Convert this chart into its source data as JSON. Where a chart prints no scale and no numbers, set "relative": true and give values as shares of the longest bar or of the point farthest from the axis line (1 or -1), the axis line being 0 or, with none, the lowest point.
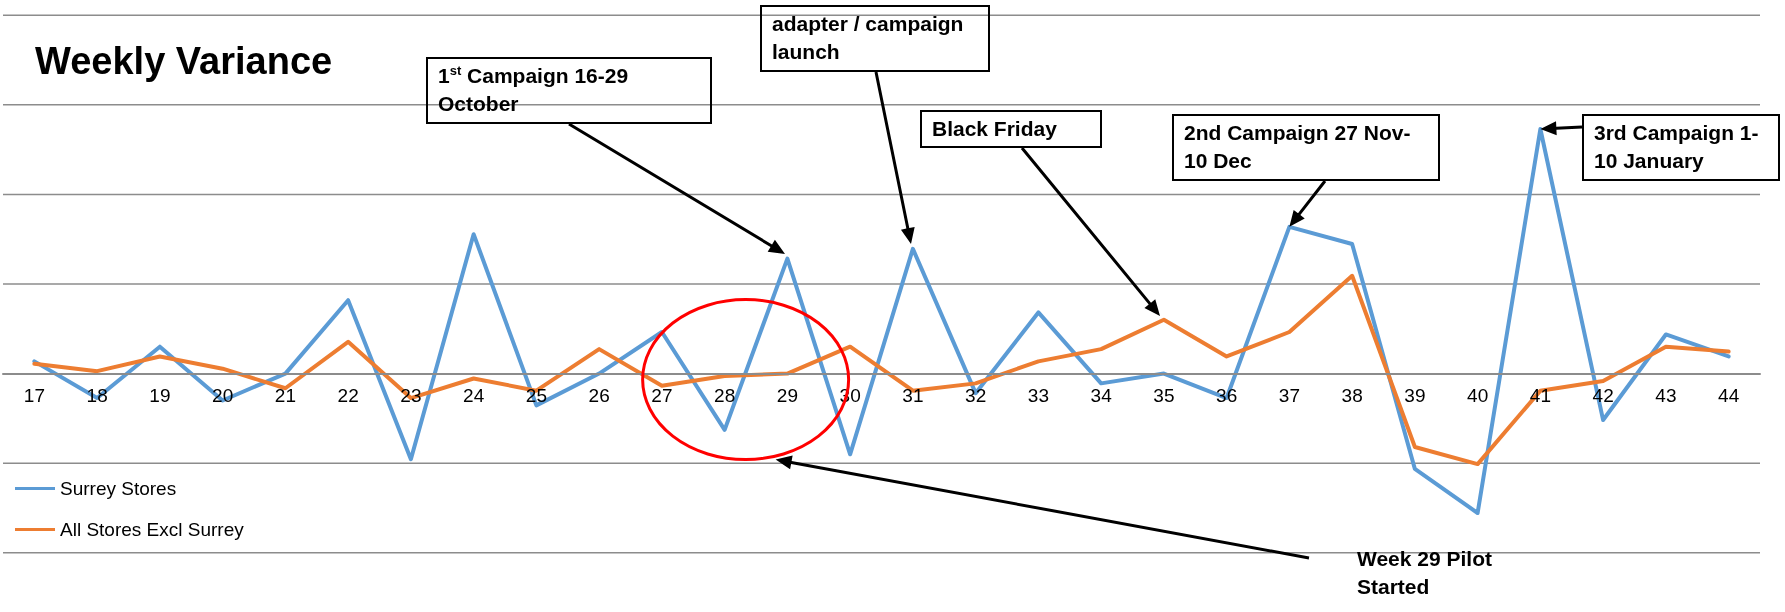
{
  "chart_data": {
    "type": "line",
    "title": "Weekly Variance",
    "categories": [
      "17",
      "18",
      "19",
      "20",
      "21",
      "22",
      "23",
      "24",
      "25",
      "26",
      "27",
      "28",
      "29",
      "30",
      "31",
      "32",
      "33",
      "34",
      "35",
      "36",
      "37",
      "38",
      "39",
      "40",
      "41",
      "42",
      "43",
      "44"
    ],
    "relative": true,
    "grid": "y",
    "legend": "bottom left",
    "marker": "none",
    "line_style": "solid",
    "series": [
      {
        "name": "Surrey Stores",
        "color": "#5b9bd5",
        "values": [
          0.05,
          -0.1,
          0.11,
          -0.11,
          0.0,
          0.3,
          -0.35,
          0.57,
          -0.13,
          0.0,
          0.17,
          -0.23,
          0.47,
          -0.33,
          0.51,
          -0.08,
          0.25,
          -0.04,
          0.0,
          -0.1,
          0.6,
          0.53,
          -0.39,
          -0.57,
          1.0,
          -0.19,
          0.16,
          0.07
        ]
      },
      {
        "name": "All Stores Excl Surrey",
        "color": "#ed7d31",
        "values": [
          0.04,
          0.01,
          0.07,
          0.02,
          -0.06,
          0.13,
          -0.1,
          -0.02,
          -0.07,
          0.1,
          -0.05,
          -0.01,
          0.0,
          0.11,
          -0.07,
          -0.04,
          0.05,
          0.1,
          0.22,
          0.07,
          0.17,
          0.4,
          -0.3,
          -0.37,
          -0.07,
          -0.03,
          0.11,
          0.09
        ]
      }
    ],
    "annotations": [
      "1$^{st}$ Campaign 16-29 October",
      "adapter / campaign launch",
      "Black Friday",
      {
        "text": "2nd Campaign 27 Nov- 10 Dec",
        "x": "37",
        "y": 0.6
      },
      {
        "text": "3rd Campaign 1-10 January",
        "x": "41",
        "y": 1.0
      },
      "Week 29 Pilot Started"
    ]
  }
}
